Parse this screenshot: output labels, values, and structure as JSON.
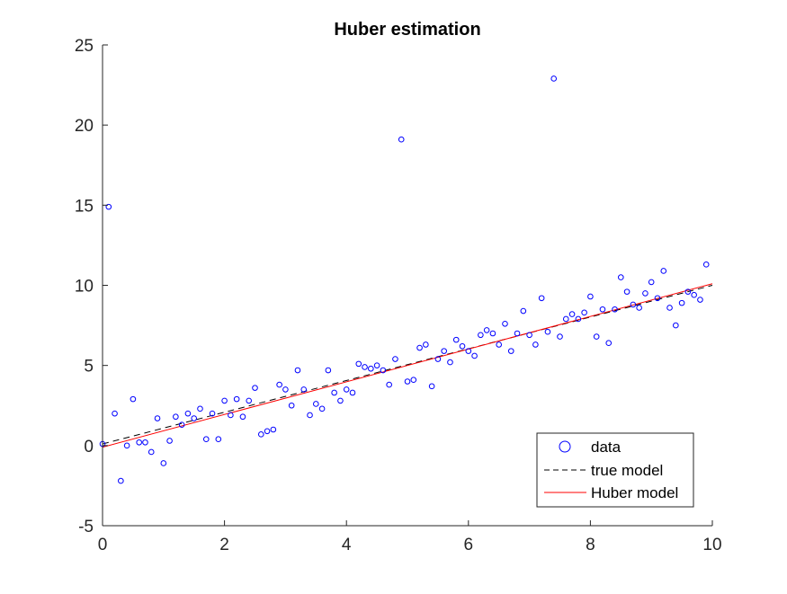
{
  "chart_data": {
    "type": "scatter",
    "title": "Huber estimation",
    "xlabel": "",
    "ylabel": "",
    "xlim": [
      0,
      10
    ],
    "ylim": [
      -5,
      25
    ],
    "x_ticks": [
      "0",
      "2",
      "4",
      "6",
      "8",
      "10"
    ],
    "y_ticks": [
      "-5",
      "0",
      "5",
      "10",
      "15",
      "20",
      "25"
    ],
    "grid": false,
    "legend_position": "bottom-right",
    "series": [
      {
        "name": "data",
        "kind": "scatter",
        "marker": "circle",
        "color": "#0000ff",
        "points": [
          [
            0.0,
            0.1
          ],
          [
            0.1,
            14.9
          ],
          [
            0.2,
            2.0
          ],
          [
            0.3,
            -2.2
          ],
          [
            0.4,
            0.0
          ],
          [
            0.5,
            2.9
          ],
          [
            0.6,
            0.2
          ],
          [
            0.7,
            0.2
          ],
          [
            0.8,
            -0.4
          ],
          [
            0.9,
            1.7
          ],
          [
            1.0,
            -1.1
          ],
          [
            1.1,
            0.3
          ],
          [
            1.2,
            1.8
          ],
          [
            1.3,
            1.3
          ],
          [
            1.4,
            2.0
          ],
          [
            1.5,
            1.7
          ],
          [
            1.6,
            2.3
          ],
          [
            1.7,
            0.4
          ],
          [
            1.8,
            2.0
          ],
          [
            1.9,
            0.4
          ],
          [
            2.0,
            2.8
          ],
          [
            2.1,
            1.9
          ],
          [
            2.2,
            2.9
          ],
          [
            2.3,
            1.8
          ],
          [
            2.4,
            2.8
          ],
          [
            2.5,
            3.6
          ],
          [
            2.6,
            0.7
          ],
          [
            2.7,
            0.9
          ],
          [
            2.8,
            1.0
          ],
          [
            2.9,
            3.8
          ],
          [
            3.0,
            3.5
          ],
          [
            3.1,
            2.5
          ],
          [
            3.2,
            4.7
          ],
          [
            3.3,
            3.5
          ],
          [
            3.4,
            1.9
          ],
          [
            3.5,
            2.6
          ],
          [
            3.6,
            2.3
          ],
          [
            3.7,
            4.7
          ],
          [
            3.8,
            3.3
          ],
          [
            3.9,
            2.8
          ],
          [
            4.0,
            3.5
          ],
          [
            4.1,
            3.3
          ],
          [
            4.2,
            5.1
          ],
          [
            4.3,
            4.9
          ],
          [
            4.4,
            4.8
          ],
          [
            4.5,
            5.0
          ],
          [
            4.6,
            4.7
          ],
          [
            4.7,
            3.8
          ],
          [
            4.8,
            5.4
          ],
          [
            4.9,
            19.1
          ],
          [
            5.0,
            4.0
          ],
          [
            5.1,
            4.1
          ],
          [
            5.2,
            6.1
          ],
          [
            5.3,
            6.3
          ],
          [
            5.4,
            3.7
          ],
          [
            5.5,
            5.4
          ],
          [
            5.6,
            5.9
          ],
          [
            5.7,
            5.2
          ],
          [
            5.8,
            6.6
          ],
          [
            5.9,
            6.2
          ],
          [
            6.0,
            5.9
          ],
          [
            6.1,
            5.6
          ],
          [
            6.2,
            6.9
          ],
          [
            6.3,
            7.2
          ],
          [
            6.4,
            7.0
          ],
          [
            6.5,
            6.3
          ],
          [
            6.6,
            7.6
          ],
          [
            6.7,
            5.9
          ],
          [
            6.8,
            7.0
          ],
          [
            6.9,
            8.4
          ],
          [
            7.0,
            6.9
          ],
          [
            7.1,
            6.3
          ],
          [
            7.2,
            9.2
          ],
          [
            7.3,
            7.1
          ],
          [
            7.4,
            22.9
          ],
          [
            7.5,
            6.8
          ],
          [
            7.6,
            7.9
          ],
          [
            7.7,
            8.2
          ],
          [
            7.8,
            7.9
          ],
          [
            7.9,
            8.3
          ],
          [
            8.0,
            9.3
          ],
          [
            8.1,
            6.8
          ],
          [
            8.2,
            8.5
          ],
          [
            8.3,
            6.4
          ],
          [
            8.4,
            8.5
          ],
          [
            8.5,
            10.5
          ],
          [
            8.6,
            9.6
          ],
          [
            8.7,
            8.8
          ],
          [
            8.8,
            8.6
          ],
          [
            8.9,
            9.5
          ],
          [
            9.0,
            10.2
          ],
          [
            9.1,
            9.2
          ],
          [
            9.2,
            10.9
          ],
          [
            9.3,
            8.6
          ],
          [
            9.4,
            7.5
          ],
          [
            9.5,
            8.9
          ],
          [
            9.6,
            9.6
          ],
          [
            9.7,
            9.4
          ],
          [
            9.8,
            9.1
          ],
          [
            9.9,
            11.3
          ]
        ]
      },
      {
        "name": "true model",
        "kind": "line",
        "style": "dashed",
        "color": "#000000",
        "x": [
          0,
          10
        ],
        "y": [
          0.1,
          10.0
        ]
      },
      {
        "name": "Huber model",
        "kind": "line",
        "style": "solid",
        "color": "#ff0000",
        "x": [
          0,
          10
        ],
        "y": [
          -0.1,
          10.1
        ]
      }
    ]
  }
}
